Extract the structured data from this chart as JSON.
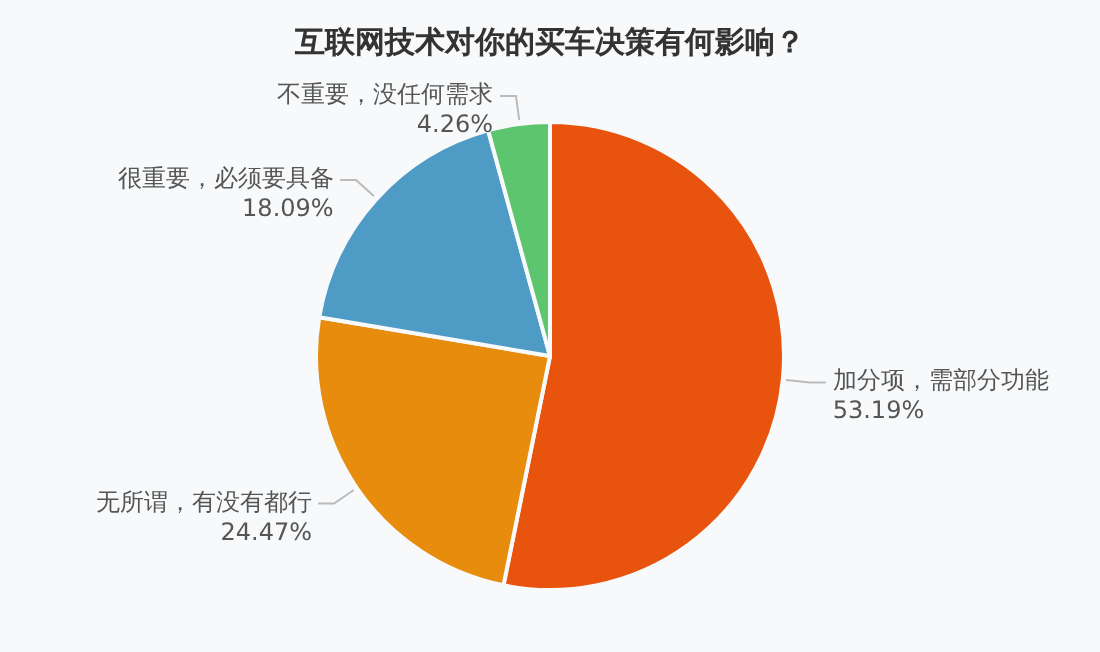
{
  "chart_data": {
    "type": "pie",
    "title": "互联网技术对你的买车决策有何影响？",
    "categories": [
      "加分项，需部分功能",
      "无所谓，有没有都行",
      "很重要，必须要具备",
      "不重要，没任何需求"
    ],
    "values": [
      53.19,
      24.47,
      18.09,
      4.26
    ],
    "value_labels": [
      "53.19%",
      "24.47%",
      "18.09%",
      "4.26%"
    ],
    "colors": [
      "#e8530e",
      "#e88c0e",
      "#4e9bc6",
      "#5dc56e"
    ],
    "legend": false
  }
}
